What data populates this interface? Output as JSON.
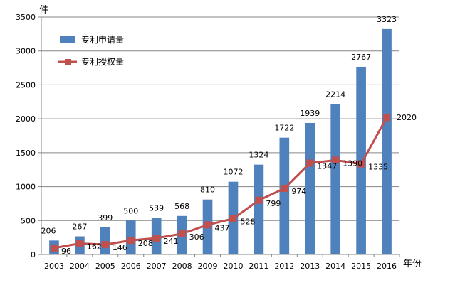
{
  "chart_data": {
    "type": "bar",
    "title": "",
    "xlabel": "年份",
    "ylabel": "件",
    "ylim": [
      0,
      3500
    ],
    "ytick_step": 500,
    "grid": true,
    "legend_position": "top-left",
    "categories": [
      "2003",
      "2004",
      "2005",
      "2006",
      "2007",
      "2008",
      "2009",
      "2010",
      "2011",
      "2012",
      "2013",
      "2014",
      "2015",
      "2016"
    ],
    "series": [
      {
        "name": "专利申请量",
        "kind": "bar",
        "color": "#4F81BD",
        "values": [
          206,
          267,
          399,
          500,
          539,
          568,
          810,
          1072,
          1324,
          1722,
          1939,
          2214,
          2767,
          3323
        ],
        "labels": [
          "206",
          "267",
          "399",
          "500",
          "539",
          "568",
          "810",
          "1072",
          "1324",
          "1722",
          "1939",
          "2214",
          "2767",
          "3323"
        ]
      },
      {
        "name": "专利授权量",
        "kind": "line",
        "color": "#C0504D",
        "values": [
          96,
          162,
          146,
          208,
          241,
          306,
          437,
          528,
          799,
          974,
          1347,
          1390,
          1335,
          2020
        ],
        "labels": [
          "96",
          "162",
          "146",
          "208",
          "241",
          "306",
          "437",
          "528",
          "799",
          "974",
          "1347",
          "1390",
          "1335",
          "2020"
        ]
      }
    ],
    "ytick_labels": [
      "0",
      "500",
      "1000",
      "1500",
      "2000",
      "2500",
      "3000",
      "3500"
    ]
  }
}
